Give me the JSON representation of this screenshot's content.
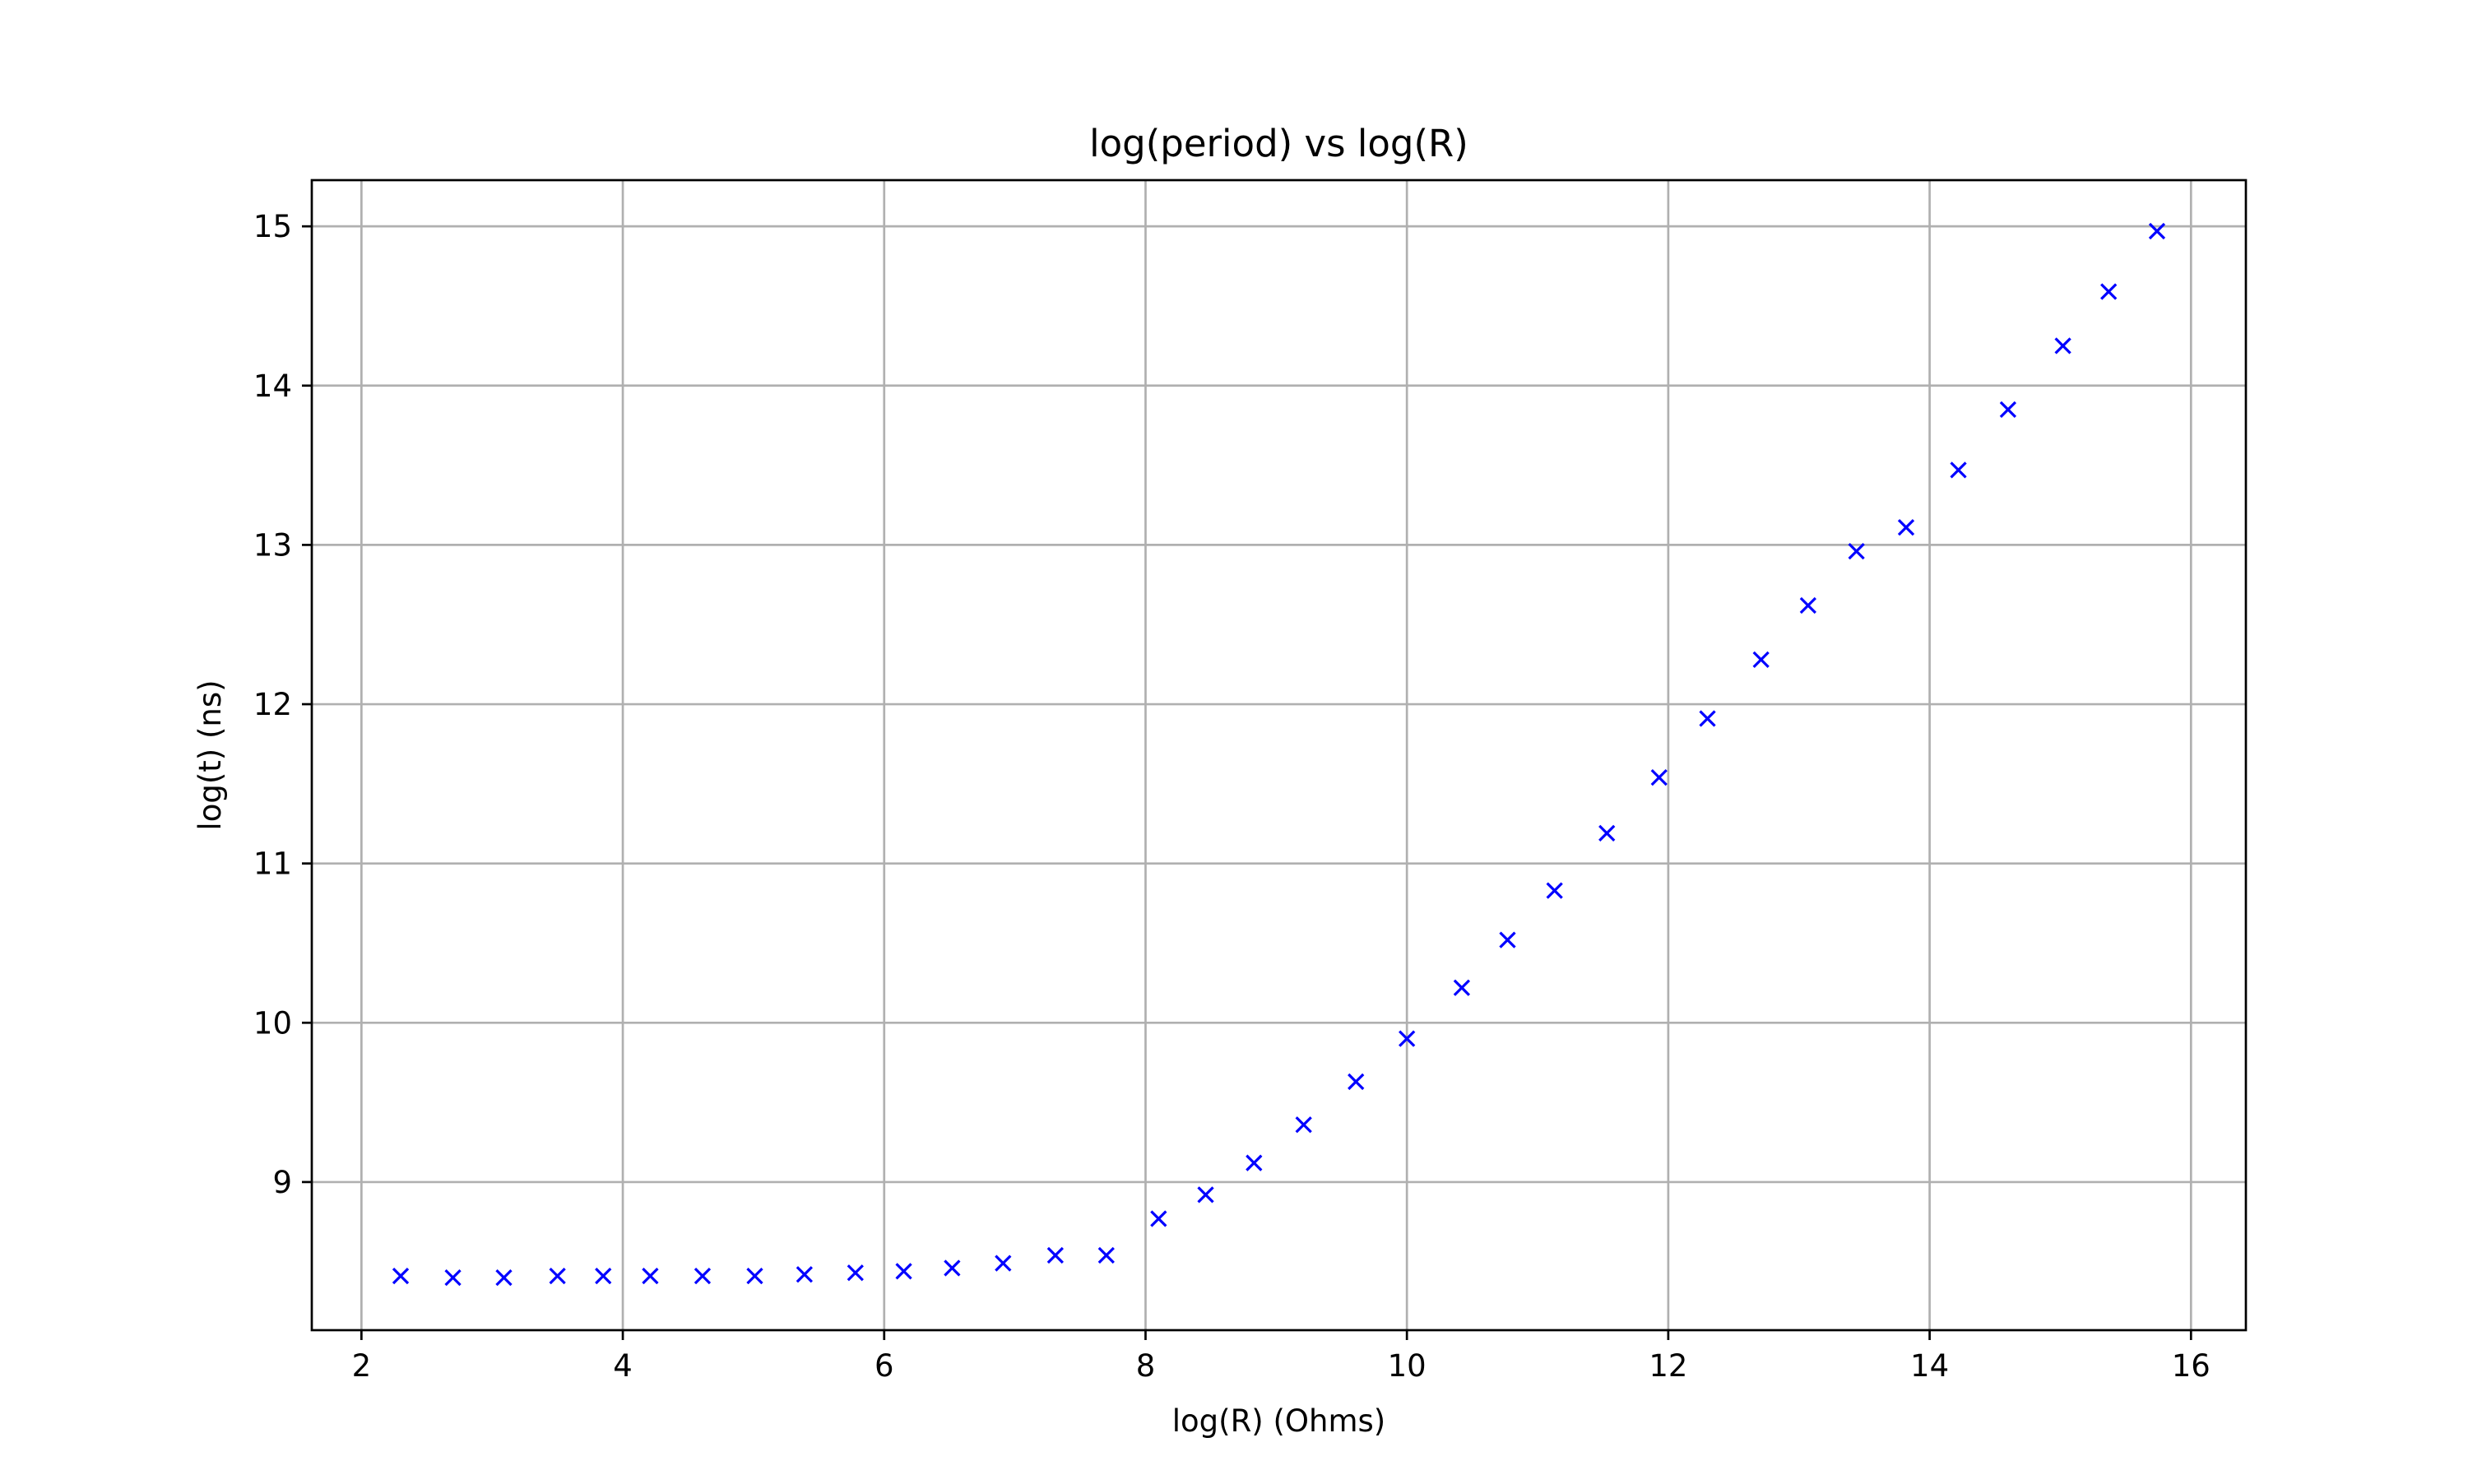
{
  "chart_data": {
    "type": "scatter",
    "title": "log(period) vs log(R)",
    "xlabel": "log(R) (Ohms)",
    "ylabel": "log(t) (ns)",
    "xlim": [
      1.62,
      16.42
    ],
    "ylim": [
      8.07,
      15.29
    ],
    "x_ticks": [
      2,
      4,
      6,
      8,
      10,
      12,
      14,
      16
    ],
    "y_ticks": [
      9,
      10,
      11,
      12,
      13,
      14,
      15
    ],
    "grid": true,
    "legend": "none",
    "marker": "x",
    "marker_color": "#0000ff",
    "grid_color": "#b0b0b0",
    "points": [
      {
        "x": 2.3,
        "y": 8.41
      },
      {
        "x": 2.7,
        "y": 8.4
      },
      {
        "x": 3.09,
        "y": 8.4
      },
      {
        "x": 3.5,
        "y": 8.41
      },
      {
        "x": 3.85,
        "y": 8.41
      },
      {
        "x": 4.21,
        "y": 8.41
      },
      {
        "x": 4.61,
        "y": 8.41
      },
      {
        "x": 5.01,
        "y": 8.41
      },
      {
        "x": 5.39,
        "y": 8.42
      },
      {
        "x": 5.78,
        "y": 8.43
      },
      {
        "x": 6.15,
        "y": 8.44
      },
      {
        "x": 6.52,
        "y": 8.46
      },
      {
        "x": 6.91,
        "y": 8.49
      },
      {
        "x": 7.31,
        "y": 8.54
      },
      {
        "x": 7.7,
        "y": 8.54
      },
      {
        "x": 8.1,
        "y": 8.77
      },
      {
        "x": 8.46,
        "y": 8.92
      },
      {
        "x": 8.83,
        "y": 9.12
      },
      {
        "x": 9.21,
        "y": 9.36
      },
      {
        "x": 9.61,
        "y": 9.63
      },
      {
        "x": 10.0,
        "y": 9.9
      },
      {
        "x": 10.42,
        "y": 10.22
      },
      {
        "x": 10.77,
        "y": 10.52
      },
      {
        "x": 11.13,
        "y": 10.83
      },
      {
        "x": 11.53,
        "y": 11.19
      },
      {
        "x": 11.93,
        "y": 11.54
      },
      {
        "x": 12.3,
        "y": 11.91
      },
      {
        "x": 12.71,
        "y": 12.28
      },
      {
        "x": 13.07,
        "y": 12.62
      },
      {
        "x": 13.44,
        "y": 12.96
      },
      {
        "x": 13.82,
        "y": 13.11
      },
      {
        "x": 14.22,
        "y": 13.47
      },
      {
        "x": 14.6,
        "y": 13.85
      },
      {
        "x": 15.02,
        "y": 14.25
      },
      {
        "x": 15.37,
        "y": 14.59
      },
      {
        "x": 15.74,
        "y": 14.97
      }
    ]
  }
}
